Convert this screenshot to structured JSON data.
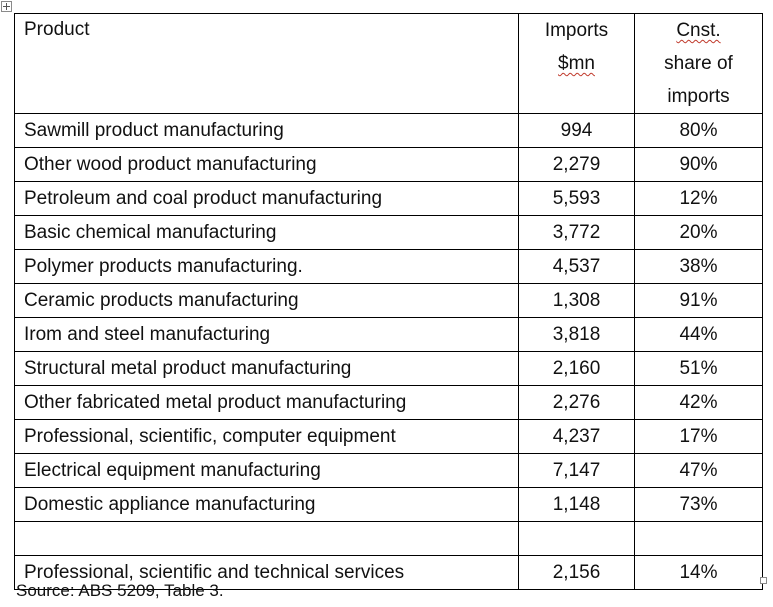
{
  "table": {
    "headers": {
      "product": "Product",
      "imports_line1": "Imports",
      "imports_line2": "$mn",
      "share_line1": "Cnst.",
      "share_line2": "share of",
      "share_line3": "imports"
    },
    "rows": [
      {
        "product": "Sawmill product manufacturing",
        "imports": "994",
        "share": "80%"
      },
      {
        "product": "Other wood product manufacturing",
        "imports": "2,279",
        "share": "90%"
      },
      {
        "product": "Petroleum and coal product manufacturing",
        "imports": "5,593",
        "share": "12%"
      },
      {
        "product": "Basic chemical manufacturing",
        "imports": "3,772",
        "share": "20%"
      },
      {
        "product": "Polymer products manufacturing.",
        "imports": "4,537",
        "share": "38%"
      },
      {
        "product": "Ceramic products manufacturing",
        "imports": "1,308",
        "share": "91%"
      },
      {
        "product": "Irom and steel manufacturing",
        "imports": "3,818",
        "share": "44%"
      },
      {
        "product": "Structural metal product manufacturing",
        "imports": "2,160",
        "share": "51%"
      },
      {
        "product": "Other fabricated metal product manufacturing",
        "imports": "2,276",
        "share": "42%"
      },
      {
        "product": "Professional, scientific, computer equipment",
        "imports": "4,237",
        "share": "17%"
      },
      {
        "product": "Electrical equipment manufacturing",
        "imports": "7,147",
        "share": "47%"
      },
      {
        "product": "Domestic appliance manufacturing",
        "imports": "1,148",
        "share": "73%"
      }
    ],
    "footer_row": {
      "product": "Professional, scientific and technical services",
      "imports": "2,156",
      "share": "14%"
    }
  },
  "source": "Source: ABS 5209, Table 3."
}
